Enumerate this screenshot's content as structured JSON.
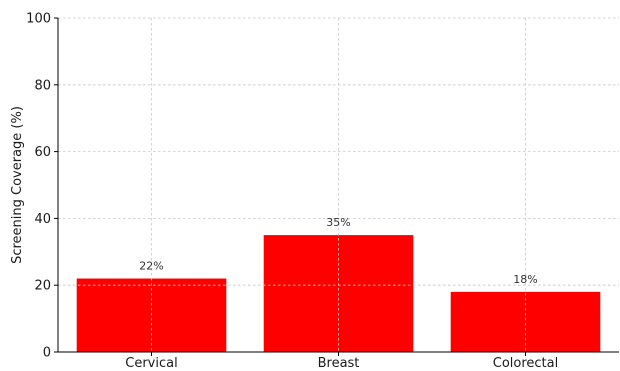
{
  "chart_data": {
    "type": "bar",
    "title": "",
    "xlabel": "",
    "ylabel": "Screening Coverage (%)",
    "categories": [
      "Cervical",
      "Breast",
      "Colorectal"
    ],
    "values": [
      22,
      35,
      18
    ],
    "data_labels": [
      "22%",
      "35%",
      "18%"
    ],
    "ylim": [
      0,
      100
    ],
    "yticks": [
      0,
      20,
      40,
      60,
      80,
      100
    ],
    "grid": true,
    "legend": "none",
    "bar_color": "#ff0000"
  }
}
